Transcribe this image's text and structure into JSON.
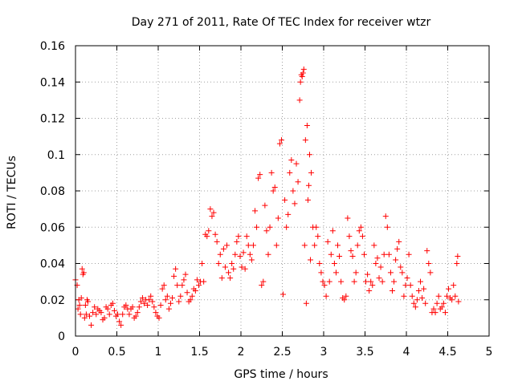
{
  "chart_data": {
    "type": "scatter",
    "title": "Day 271 of 2011, Rate Of TEC Index for receiver wtzr",
    "xlabel": "GPS time / hours",
    "ylabel": "ROTI / TECUs",
    "xlim": [
      0,
      5
    ],
    "ylim": [
      0,
      0.16
    ],
    "x_ticks": [
      0,
      0.5,
      1,
      1.5,
      2,
      2.5,
      3,
      3.5,
      4,
      4.5,
      5
    ],
    "x_tick_labels": [
      "0",
      "0.5",
      "1",
      "1.5",
      "2",
      "2.5",
      "3",
      "3.5",
      "4",
      "4.5",
      "5"
    ],
    "y_ticks": [
      0,
      0.02,
      0.04,
      0.06,
      0.08,
      0.1,
      0.12,
      0.14,
      0.16
    ],
    "y_tick_labels": [
      "0",
      "0.02",
      "0.04",
      "0.06",
      "0.08",
      "0.1",
      "0.12",
      "0.14",
      "0.16"
    ],
    "grid": true,
    "marker": "+",
    "marker_color": "#ff0000",
    "series": [
      {
        "name": "ROTI",
        "points": [
          [
            0.0,
            0.031
          ],
          [
            0.02,
            0.028
          ],
          [
            0.03,
            0.015
          ],
          [
            0.04,
            0.02
          ],
          [
            0.05,
            0.017
          ],
          [
            0.06,
            0.012
          ],
          [
            0.07,
            0.021
          ],
          [
            0.08,
            0.037
          ],
          [
            0.09,
            0.034
          ],
          [
            0.1,
            0.035
          ],
          [
            0.11,
            0.01
          ],
          [
            0.12,
            0.017
          ],
          [
            0.13,
            0.012
          ],
          [
            0.14,
            0.02
          ],
          [
            0.15,
            0.019
          ],
          [
            0.17,
            0.011
          ],
          [
            0.19,
            0.006
          ],
          [
            0.21,
            0.013
          ],
          [
            0.23,
            0.016
          ],
          [
            0.25,
            0.012
          ],
          [
            0.27,
            0.015
          ],
          [
            0.29,
            0.014
          ],
          [
            0.31,
            0.013
          ],
          [
            0.33,
            0.009
          ],
          [
            0.35,
            0.01
          ],
          [
            0.37,
            0.016
          ],
          [
            0.39,
            0.015
          ],
          [
            0.41,
            0.012
          ],
          [
            0.43,
            0.017
          ],
          [
            0.45,
            0.018
          ],
          [
            0.47,
            0.014
          ],
          [
            0.49,
            0.011
          ],
          [
            0.51,
            0.012
          ],
          [
            0.53,
            0.008
          ],
          [
            0.55,
            0.006
          ],
          [
            0.57,
            0.012
          ],
          [
            0.59,
            0.016
          ],
          [
            0.61,
            0.017
          ],
          [
            0.63,
            0.015
          ],
          [
            0.65,
            0.012
          ],
          [
            0.67,
            0.015
          ],
          [
            0.69,
            0.016
          ],
          [
            0.71,
            0.01
          ],
          [
            0.73,
            0.011
          ],
          [
            0.75,
            0.013
          ],
          [
            0.77,
            0.016
          ],
          [
            0.79,
            0.019
          ],
          [
            0.81,
            0.021
          ],
          [
            0.83,
            0.018
          ],
          [
            0.85,
            0.02
          ],
          [
            0.87,
            0.017
          ],
          [
            0.89,
            0.02
          ],
          [
            0.91,
            0.022
          ],
          [
            0.93,
            0.019
          ],
          [
            0.95,
            0.016
          ],
          [
            0.97,
            0.013
          ],
          [
            0.99,
            0.011
          ],
          [
            1.01,
            0.01
          ],
          [
            1.03,
            0.017
          ],
          [
            1.05,
            0.026
          ],
          [
            1.07,
            0.028
          ],
          [
            1.09,
            0.02
          ],
          [
            1.11,
            0.022
          ],
          [
            1.13,
            0.015
          ],
          [
            1.15,
            0.018
          ],
          [
            1.17,
            0.021
          ],
          [
            1.19,
            0.033
          ],
          [
            1.21,
            0.037
          ],
          [
            1.23,
            0.028
          ],
          [
            1.25,
            0.019
          ],
          [
            1.27,
            0.022
          ],
          [
            1.29,
            0.028
          ],
          [
            1.31,
            0.031
          ],
          [
            1.33,
            0.034
          ],
          [
            1.35,
            0.024
          ],
          [
            1.37,
            0.019
          ],
          [
            1.39,
            0.02
          ],
          [
            1.41,
            0.022
          ],
          [
            1.43,
            0.026
          ],
          [
            1.45,
            0.025
          ],
          [
            1.47,
            0.031
          ],
          [
            1.49,
            0.028
          ],
          [
            1.51,
            0.03
          ],
          [
            1.53,
            0.04
          ],
          [
            1.55,
            0.03
          ],
          [
            1.57,
            0.056
          ],
          [
            1.59,
            0.055
          ],
          [
            1.61,
            0.058
          ],
          [
            1.63,
            0.07
          ],
          [
            1.65,
            0.066
          ],
          [
            1.67,
            0.068
          ],
          [
            1.69,
            0.056
          ],
          [
            1.71,
            0.052
          ],
          [
            1.73,
            0.04
          ],
          [
            1.75,
            0.045
          ],
          [
            1.77,
            0.032
          ],
          [
            1.79,
            0.048
          ],
          [
            1.81,
            0.038
          ],
          [
            1.83,
            0.05
          ],
          [
            1.85,
            0.035
          ],
          [
            1.87,
            0.032
          ],
          [
            1.89,
            0.04
          ],
          [
            1.91,
            0.037
          ],
          [
            1.93,
            0.045
          ],
          [
            1.95,
            0.052
          ],
          [
            1.97,
            0.055
          ],
          [
            1.99,
            0.044
          ],
          [
            2.01,
            0.038
          ],
          [
            2.03,
            0.046
          ],
          [
            2.05,
            0.037
          ],
          [
            2.07,
            0.055
          ],
          [
            2.09,
            0.05
          ],
          [
            2.11,
            0.045
          ],
          [
            2.13,
            0.042
          ],
          [
            2.15,
            0.05
          ],
          [
            2.17,
            0.069
          ],
          [
            2.19,
            0.06
          ],
          [
            2.21,
            0.087
          ],
          [
            2.23,
            0.089
          ],
          [
            2.25,
            0.028
          ],
          [
            2.27,
            0.03
          ],
          [
            2.29,
            0.072
          ],
          [
            2.31,
            0.058
          ],
          [
            2.33,
            0.045
          ],
          [
            2.35,
            0.06
          ],
          [
            2.37,
            0.09
          ],
          [
            2.39,
            0.08
          ],
          [
            2.41,
            0.082
          ],
          [
            2.43,
            0.05
          ],
          [
            2.45,
            0.065
          ],
          [
            2.47,
            0.106
          ],
          [
            2.49,
            0.108
          ],
          [
            2.51,
            0.023
          ],
          [
            2.53,
            0.075
          ],
          [
            2.55,
            0.06
          ],
          [
            2.57,
            0.067
          ],
          [
            2.59,
            0.09
          ],
          [
            2.61,
            0.097
          ],
          [
            2.63,
            0.08
          ],
          [
            2.65,
            0.073
          ],
          [
            2.67,
            0.095
          ],
          [
            2.69,
            0.085
          ],
          [
            2.71,
            0.13
          ],
          [
            2.72,
            0.14
          ],
          [
            2.73,
            0.144
          ],
          [
            2.74,
            0.143
          ],
          [
            2.75,
            0.145
          ],
          [
            2.76,
            0.147
          ],
          [
            2.77,
            0.05
          ],
          [
            2.78,
            0.108
          ],
          [
            2.79,
            0.018
          ],
          [
            2.8,
            0.116
          ],
          [
            2.81,
            0.075
          ],
          [
            2.82,
            0.083
          ],
          [
            2.83,
            0.1
          ],
          [
            2.84,
            0.042
          ],
          [
            2.85,
            0.09
          ],
          [
            2.87,
            0.06
          ],
          [
            2.89,
            0.05
          ],
          [
            2.91,
            0.06
          ],
          [
            2.93,
            0.055
          ],
          [
            2.95,
            0.04
          ],
          [
            2.97,
            0.035
          ],
          [
            2.99,
            0.03
          ],
          [
            3.01,
            0.028
          ],
          [
            3.03,
            0.022
          ],
          [
            3.05,
            0.052
          ],
          [
            3.07,
            0.03
          ],
          [
            3.09,
            0.045
          ],
          [
            3.11,
            0.058
          ],
          [
            3.13,
            0.04
          ],
          [
            3.15,
            0.035
          ],
          [
            3.17,
            0.05
          ],
          [
            3.19,
            0.044
          ],
          [
            3.21,
            0.03
          ],
          [
            3.23,
            0.021
          ],
          [
            3.25,
            0.02
          ],
          [
            3.27,
            0.022
          ],
          [
            3.29,
            0.065
          ],
          [
            3.31,
            0.055
          ],
          [
            3.33,
            0.047
          ],
          [
            3.35,
            0.044
          ],
          [
            3.37,
            0.03
          ],
          [
            3.39,
            0.035
          ],
          [
            3.41,
            0.05
          ],
          [
            3.43,
            0.058
          ],
          [
            3.45,
            0.06
          ],
          [
            3.47,
            0.055
          ],
          [
            3.49,
            0.045
          ],
          [
            3.51,
            0.03
          ],
          [
            3.53,
            0.034
          ],
          [
            3.55,
            0.025
          ],
          [
            3.57,
            0.03
          ],
          [
            3.59,
            0.028
          ],
          [
            3.61,
            0.05
          ],
          [
            3.63,
            0.04
          ],
          [
            3.65,
            0.043
          ],
          [
            3.67,
            0.032
          ],
          [
            3.69,
            0.038
          ],
          [
            3.71,
            0.03
          ],
          [
            3.73,
            0.045
          ],
          [
            3.75,
            0.066
          ],
          [
            3.77,
            0.06
          ],
          [
            3.79,
            0.045
          ],
          [
            3.81,
            0.035
          ],
          [
            3.83,
            0.025
          ],
          [
            3.85,
            0.03
          ],
          [
            3.87,
            0.042
          ],
          [
            3.89,
            0.048
          ],
          [
            3.91,
            0.052
          ],
          [
            3.93,
            0.038
          ],
          [
            3.95,
            0.035
          ],
          [
            3.97,
            0.022
          ],
          [
            3.99,
            0.028
          ],
          [
            4.01,
            0.032
          ],
          [
            4.03,
            0.045
          ],
          [
            4.05,
            0.028
          ],
          [
            4.07,
            0.022
          ],
          [
            4.09,
            0.018
          ],
          [
            4.11,
            0.016
          ],
          [
            4.13,
            0.02
          ],
          [
            4.15,
            0.025
          ],
          [
            4.17,
            0.03
          ],
          [
            4.19,
            0.021
          ],
          [
            4.21,
            0.026
          ],
          [
            4.23,
            0.018
          ],
          [
            4.25,
            0.047
          ],
          [
            4.27,
            0.04
          ],
          [
            4.29,
            0.035
          ],
          [
            4.31,
            0.013
          ],
          [
            4.33,
            0.015
          ],
          [
            4.35,
            0.013
          ],
          [
            4.37,
            0.018
          ],
          [
            4.39,
            0.022
          ],
          [
            4.41,
            0.015
          ],
          [
            4.43,
            0.016
          ],
          [
            4.45,
            0.018
          ],
          [
            4.47,
            0.013
          ],
          [
            4.49,
            0.022
          ],
          [
            4.51,
            0.026
          ],
          [
            4.53,
            0.021
          ],
          [
            4.55,
            0.02
          ],
          [
            4.57,
            0.028
          ],
          [
            4.59,
            0.022
          ],
          [
            4.61,
            0.04
          ],
          [
            4.62,
            0.044
          ],
          [
            4.63,
            0.019
          ]
        ]
      }
    ]
  }
}
